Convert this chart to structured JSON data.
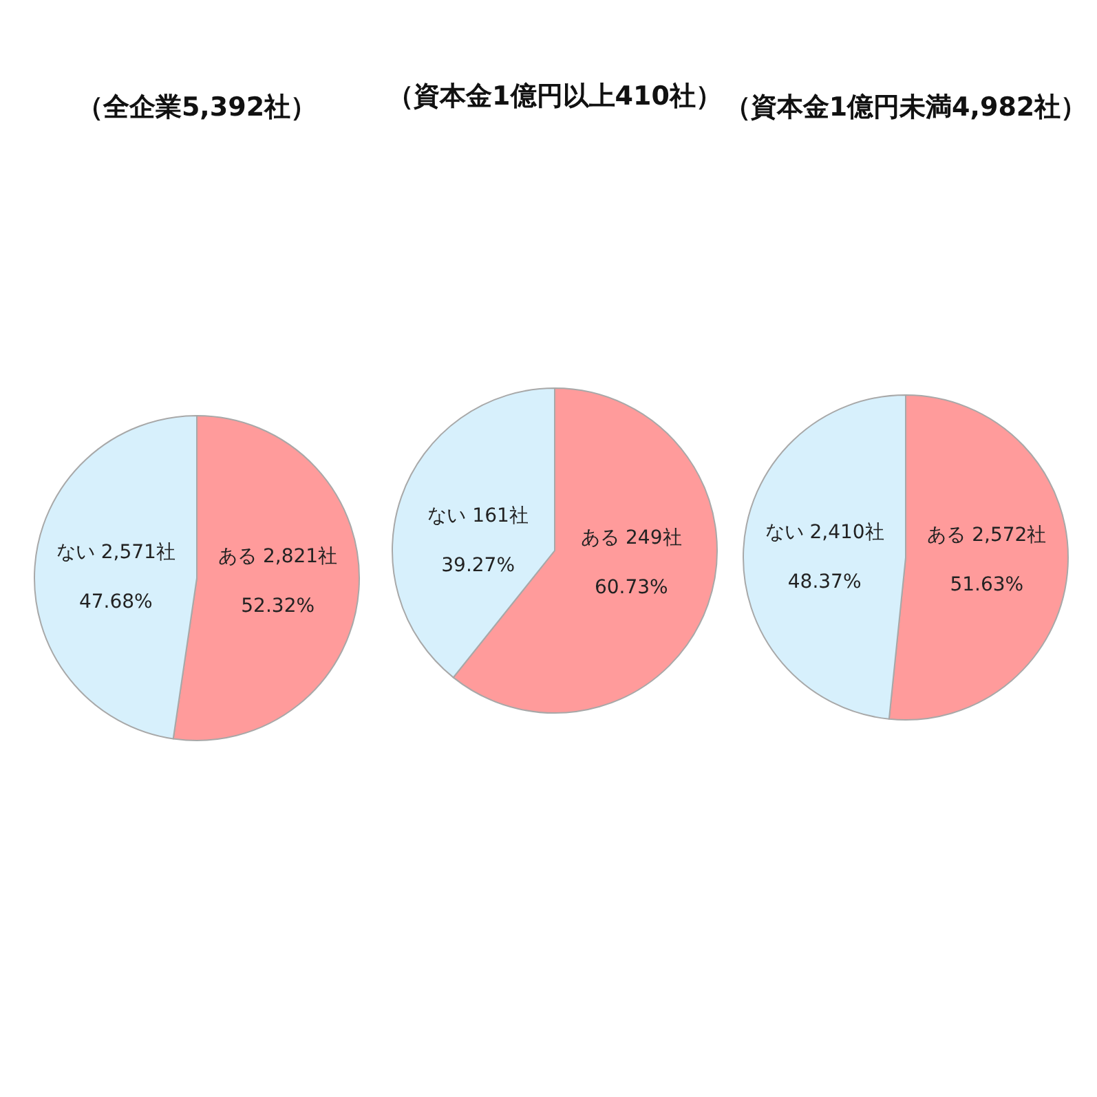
{
  "chart_data": [
    {
      "type": "pie",
      "title": "（全企業5,392社）",
      "categories": [
        "ある",
        "ない"
      ],
      "values": [
        52.32,
        47.68
      ],
      "colors": [
        "#ff9b9b",
        "#d7f0fc"
      ],
      "value_labels": [
        "2,821社\n52.32%",
        "2,571社\n47.68%"
      ]
    },
    {
      "type": "pie",
      "title": "（資本金1億円以上410社）",
      "categories": [
        "ある",
        "ない"
      ],
      "values": [
        60.73,
        39.27
      ],
      "colors": [
        "#ff9b9b",
        "#d7f0fc"
      ],
      "value_labels": [
        "249社\n60.73%",
        "161社\n39.27%"
      ]
    },
    {
      "type": "pie",
      "title": "（資本金1億円未満4,982社）",
      "categories": [
        "ある",
        "ない"
      ],
      "values": [
        51.63,
        48.37
      ],
      "colors": [
        "#ff9b9b",
        "#d7f0fc"
      ],
      "value_labels": [
        "2,572社\n51.63%",
        "2,410社\n48.37%"
      ]
    }
  ]
}
